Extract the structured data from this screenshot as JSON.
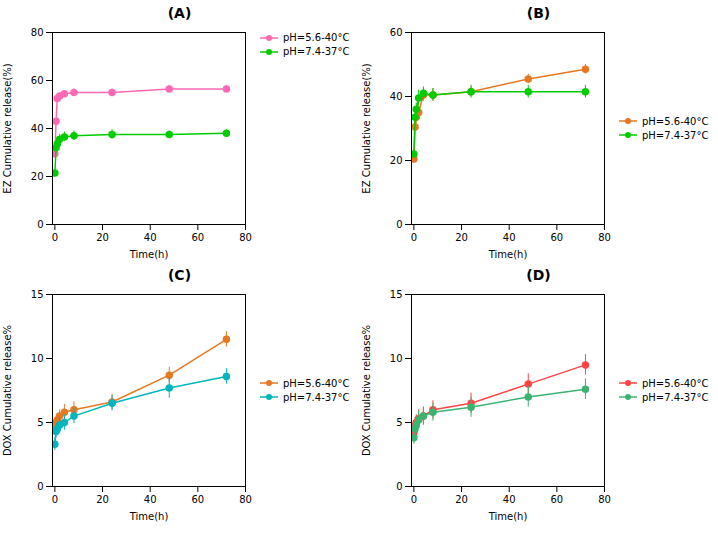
{
  "chart_data": [
    {
      "type": "line",
      "title": "(A)",
      "xlabel": "Time(h)",
      "ylabel": "EZ Cumulative release(%)",
      "x": [
        0,
        0.5,
        1,
        2,
        4,
        8,
        24,
        48,
        72
      ],
      "xlim": [
        -1,
        80
      ],
      "xticks": [
        0,
        20,
        40,
        60,
        80
      ],
      "ylim": [
        0,
        80
      ],
      "yticks": [
        0,
        20,
        40,
        60,
        80
      ],
      "grid": false,
      "legend": "upper right",
      "marker": "circle",
      "line_style": "solid",
      "series": [
        {
          "name": "pH=5.6-40°C",
          "color": "#FF69B4",
          "values": [
            29.5,
            43.0,
            52.5,
            53.5,
            54.5,
            55.0,
            55.0,
            56.5,
            56.5
          ],
          "yerr": [
            0.8,
            1.0,
            1.5,
            1.5,
            1.2,
            1.5,
            1.5,
            1.5,
            1.5
          ]
        },
        {
          "name": "pH=7.4-37°C",
          "color": "#00CC00",
          "values": [
            21.5,
            32.0,
            33.5,
            35.5,
            36.5,
            37.0,
            37.5,
            37.5,
            38.0
          ],
          "yerr": [
            0.8,
            1.5,
            1.5,
            2.0,
            2.0,
            2.0,
            2.0,
            1.5,
            1.5
          ]
        }
      ]
    },
    {
      "type": "line",
      "title": "(B)",
      "xlabel": "Time(h)",
      "ylabel": "EZ Cumulative release(%)",
      "x": [
        0,
        0.5,
        1,
        2,
        4,
        8,
        24,
        48,
        72
      ],
      "xlim": [
        -1,
        80
      ],
      "xticks": [
        0,
        20,
        40,
        60,
        80
      ],
      "ylim": [
        0,
        60
      ],
      "yticks": [
        0,
        20,
        40,
        60
      ],
      "grid": false,
      "legend": "center right",
      "marker": "circle",
      "line_style": "solid",
      "series": [
        {
          "name": "pH=5.6-40°C",
          "color": "#E87722",
          "values": [
            20.5,
            30.5,
            33.5,
            35.0,
            40.5,
            40.5,
            41.5,
            45.5,
            48.5
          ],
          "yerr": [
            1.0,
            1.5,
            2.0,
            2.0,
            2.0,
            2.0,
            1.5,
            1.5,
            1.5
          ]
        },
        {
          "name": "pH=7.4-37°C",
          "color": "#00CC00",
          "values": [
            22.0,
            33.5,
            36.0,
            39.5,
            41.0,
            40.5,
            41.5,
            41.5,
            41.5
          ],
          "yerr": [
            1.0,
            2.0,
            2.0,
            2.5,
            2.0,
            2.0,
            2.0,
            2.0,
            2.0
          ]
        }
      ]
    },
    {
      "type": "line",
      "title": "(C)",
      "xlabel": "Time(h)",
      "ylabel": "DOX Cumulative release%",
      "x": [
        0,
        0.5,
        1,
        2,
        4,
        8,
        24,
        48,
        72
      ],
      "xlim": [
        -1,
        80
      ],
      "xticks": [
        0,
        20,
        40,
        60,
        80
      ],
      "ylim": [
        0,
        15
      ],
      "yticks": [
        0,
        5,
        10,
        15
      ],
      "grid": false,
      "legend": "center right",
      "marker": "circle",
      "line_style": "solid",
      "series": [
        {
          "name": "pH=5.6-40°C",
          "color": "#E87722",
          "values": [
            4.5,
            5.0,
            5.2,
            5.5,
            5.8,
            6.0,
            6.6,
            8.7,
            11.5
          ],
          "yerr": [
            0.4,
            0.5,
            0.5,
            0.5,
            0.6,
            0.6,
            0.6,
            0.6,
            0.6
          ]
        },
        {
          "name": "pH=7.4-37°C",
          "color": "#00B5BD",
          "values": [
            3.3,
            4.3,
            4.5,
            4.8,
            5.0,
            5.5,
            6.5,
            7.7,
            8.6
          ],
          "yerr": [
            0.5,
            0.5,
            0.5,
            0.6,
            0.6,
            0.6,
            0.6,
            0.8,
            0.6
          ]
        }
      ]
    },
    {
      "type": "line",
      "title": "(D)",
      "xlabel": "Time(h)",
      "ylabel": "DOX Cumulative release%",
      "x": [
        0,
        0.5,
        1,
        2,
        4,
        8,
        24,
        48,
        72
      ],
      "xlim": [
        -1,
        80
      ],
      "xticks": [
        0,
        20,
        40,
        60,
        80
      ],
      "ylim": [
        0,
        15
      ],
      "yticks": [
        0,
        5,
        10,
        15
      ],
      "grid": false,
      "legend": "center right",
      "marker": "circle",
      "line_style": "solid",
      "series": [
        {
          "name": "pH=5.6-40°C",
          "color": "#FF4444",
          "values": [
            4.2,
            4.8,
            5.0,
            5.3,
            5.5,
            6.0,
            6.5,
            8.0,
            9.5
          ],
          "yerr": [
            0.5,
            0.6,
            0.6,
            0.7,
            0.7,
            0.7,
            0.8,
            0.8,
            0.8
          ]
        },
        {
          "name": "pH=7.4-37°C",
          "color": "#3CB371",
          "values": [
            3.8,
            4.5,
            4.8,
            5.2,
            5.5,
            5.8,
            6.2,
            7.0,
            7.6
          ],
          "yerr": [
            0.5,
            0.6,
            0.6,
            0.7,
            0.7,
            0.7,
            0.8,
            0.8,
            0.8
          ]
        }
      ]
    }
  ]
}
